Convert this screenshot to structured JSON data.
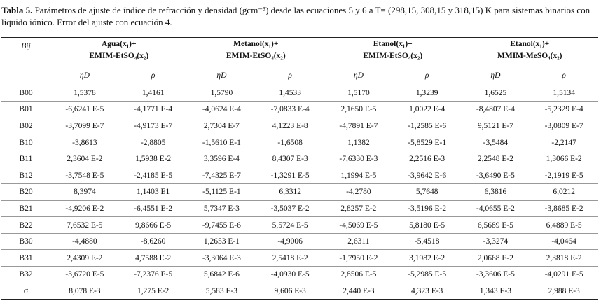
{
  "caption": {
    "label": "Tabla 5.",
    "text": " Parámetros de ajuste de índice de refracción y densidad (gcm⁻³) desde las ecuaciones 5 y 6 a T= (298,15, 308,15 y 318,15) K para sistemas binarios con liquido iónico. Error del ajuste con ecuación 4."
  },
  "header": {
    "bij": "Bij",
    "groups": [
      {
        "line1": "Agua(x₁)+",
        "line2": "EMIM-EtSO₄(x₂)"
      },
      {
        "line1": "Metanol(x₁)+",
        "line2": "EMIM-EtSO₄(x₂)"
      },
      {
        "line1": "Etanol(x₁)+",
        "line2": "EMIM-EtSO₄(x₂)"
      },
      {
        "line1": "Etanol(x₁)+",
        "line2": "MMIM-MeSO₄(x₂)"
      }
    ],
    "sub": [
      "ηD",
      "ρ",
      "ηD",
      "ρ",
      "ηD",
      "ρ",
      "ηD",
      "ρ"
    ]
  },
  "rows": [
    {
      "label": "B00",
      "values": [
        "1,5378",
        "1,4161",
        "1,5790",
        "1,4533",
        "1,5170",
        "1,3239",
        "1,6525",
        "1,5134"
      ]
    },
    {
      "label": "B01",
      "values": [
        "-6,6241 E-5",
        "-4,1771 E-4",
        "-4,0624 E-4",
        "-7,0833 E-4",
        "2,1650 E-5",
        "1,0022 E-4",
        "-8,4807 E-4",
        "-5,2329 E-4"
      ]
    },
    {
      "label": "B02",
      "values": [
        "-3,7099 E-7",
        "-4,9173 E-7",
        "2,7304 E-7",
        "4,1223 E-8",
        "-4,7891 E-7",
        "-1,2585 E-6",
        "9,5121 E-7",
        "-3,0809 E-7"
      ]
    },
    {
      "label": "B10",
      "values": [
        "-3,8613",
        "-2,8805",
        "-1,5610 E-1",
        "-1,6508",
        "1,1382",
        "-5,8529 E-1",
        "-3,5484",
        "-2,2147"
      ]
    },
    {
      "label": "B11",
      "values": [
        "2,3604 E-2",
        "1,5938 E-2",
        "3,3596 E-4",
        "8,4307 E-3",
        "-7,6330 E-3",
        "2,2516 E-3",
        "2,2548 E-2",
        "1,3066 E-2"
      ]
    },
    {
      "label": "B12",
      "values": [
        "-3,7548 E-5",
        "-2,4185 E-5",
        "-7,4325 E-7",
        "-1,3291 E-5",
        "1,1994 E-5",
        "-3,9642 E-6",
        "-3,6490 E-5",
        "-2,1919 E-5"
      ]
    },
    {
      "label": "B20",
      "values": [
        "8,3974",
        "1,1403 E1",
        "-5,1125 E-1",
        "6,3312",
        "-4,2780",
        "5,7648",
        "6,3816",
        "6,0212"
      ]
    },
    {
      "label": "B21",
      "values": [
        "-4,9206 E-2",
        "-6,4551 E-2",
        "5,7347 E-3",
        "-3,5037 E-2",
        "2,8257 E-2",
        "-3,5196 E-2",
        "-4,0655 E-2",
        "-3,8685 E-2"
      ]
    },
    {
      "label": "B22",
      "values": [
        "7,6532 E-5",
        "9,8666 E-5",
        "-9,7455 E-6",
        "5,5724 E-5",
        "-4,5069 E-5",
        "5,8180 E-5",
        "6,5689 E-5",
        "6,4889 E-5"
      ]
    },
    {
      "label": "B30",
      "values": [
        "-4,4880",
        "-8,6260",
        "1,2653 E-1",
        "-4,9006",
        "2,6311",
        "-5,4518",
        "-3,3274",
        "-4,0464"
      ]
    },
    {
      "label": "B31",
      "values": [
        "2,4309 E-2",
        "4,7588 E-2",
        "-3,3064 E-3",
        "2,5418 E-2",
        "-1,7950 E-2",
        "3,1982 E-2",
        "2,0668 E-2",
        "2,3818 E-2"
      ]
    },
    {
      "label": "B32",
      "values": [
        "-3,6720 E-5",
        "-7,2376 E-5",
        "5,6842 E-6",
        "-4,0930 E-5",
        "2,8506 E-5",
        "-5,2985 E-5",
        "-3,3606 E-5",
        "-4,0291 E-5"
      ]
    },
    {
      "label": "σ",
      "values": [
        "8,078 E-3",
        "1,275 E-2",
        "5,583 E-3",
        "9,606 E-3",
        "2,440 E-3",
        "4,323 E-3",
        "1,343 E-3",
        "2,988 E-3"
      ]
    }
  ]
}
